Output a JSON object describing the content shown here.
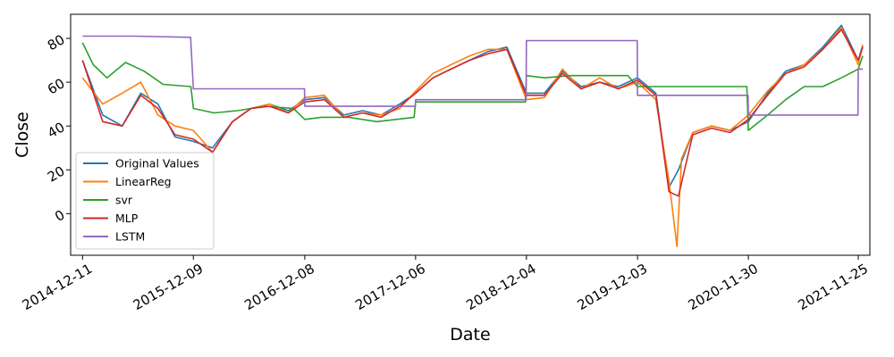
{
  "chart_data": {
    "type": "line",
    "title": "",
    "xlabel": "Date",
    "ylabel": "Close",
    "x_ticks": [
      "2014-12-11",
      "2015-12-09",
      "2016-12-08",
      "2017-12-06",
      "2018-12-04",
      "2019-12-03",
      "2020-11-30",
      "2021-11-25"
    ],
    "y_ticks": [
      0,
      20,
      40,
      60,
      80
    ],
    "xlim": [
      "2014-11-02",
      "2022-01-02"
    ],
    "ylim": [
      -19,
      91
    ],
    "grid": false,
    "legend_position": "lower-left",
    "series": [
      {
        "name": "Original Values",
        "color": "#1f77b4",
        "x": [
          "2014-12-11",
          "2015-02-15",
          "2015-04-20",
          "2015-06-20",
          "2015-08-15",
          "2015-10-10",
          "2015-12-09",
          "2016-02-10",
          "2016-04-15",
          "2016-06-15",
          "2016-08-15",
          "2016-10-15",
          "2016-12-08",
          "2017-02-10",
          "2017-04-15",
          "2017-06-15",
          "2017-08-15",
          "2017-10-15",
          "2017-12-06",
          "2018-02-01",
          "2018-04-01",
          "2018-06-01",
          "2018-08-01",
          "2018-10-01",
          "2018-12-04",
          "2019-02-01",
          "2019-04-01",
          "2019-06-01",
          "2019-08-01",
          "2019-10-01",
          "2019-12-03",
          "2020-02-01",
          "2020-03-15",
          "2020-04-15",
          "2020-06-01",
          "2020-08-01",
          "2020-10-01",
          "2020-11-30",
          "2021-02-01",
          "2021-04-01",
          "2021-06-01",
          "2021-08-01",
          "2021-10-01",
          "2021-11-25",
          "2021-12-10"
        ],
        "y": [
          70,
          45,
          40,
          55,
          50,
          35,
          33,
          30,
          42,
          48,
          50,
          47,
          52,
          53,
          45,
          47,
          45,
          50,
          55,
          62,
          66,
          70,
          74,
          76,
          55,
          55,
          65,
          58,
          60,
          58,
          62,
          55,
          12,
          20,
          37,
          40,
          38,
          42,
          55,
          65,
          68,
          76,
          86,
          70,
          77
        ]
      },
      {
        "name": "LinearReg",
        "color": "#ff7f0e",
        "x": [
          "2014-12-11",
          "2015-02-15",
          "2015-04-20",
          "2015-06-20",
          "2015-08-15",
          "2015-10-10",
          "2015-12-09",
          "2016-02-10",
          "2016-04-15",
          "2016-06-15",
          "2016-08-15",
          "2016-10-15",
          "2016-12-08",
          "2017-02-10",
          "2017-04-15",
          "2017-06-15",
          "2017-08-15",
          "2017-10-15",
          "2017-12-06",
          "2018-02-01",
          "2018-04-01",
          "2018-06-01",
          "2018-08-01",
          "2018-10-01",
          "2018-12-04",
          "2019-02-01",
          "2019-04-01",
          "2019-06-01",
          "2019-08-01",
          "2019-10-01",
          "2019-12-03",
          "2020-02-01",
          "2020-03-15",
          "2020-04-10",
          "2020-04-25",
          "2020-06-01",
          "2020-08-01",
          "2020-10-01",
          "2020-11-30",
          "2021-02-01",
          "2021-04-01",
          "2021-06-01",
          "2021-08-01",
          "2021-10-01",
          "2021-11-25",
          "2021-12-10"
        ],
        "y": [
          62,
          50,
          55,
          60,
          45,
          40,
          38,
          28,
          42,
          48,
          50,
          46,
          53,
          54,
          44,
          46,
          45,
          48,
          56,
          64,
          68,
          72,
          75,
          75,
          52,
          53,
          66,
          57,
          62,
          57,
          60,
          52,
          15,
          -15,
          25,
          37,
          40,
          38,
          45,
          56,
          64,
          68,
          75,
          85,
          68,
          77
        ]
      },
      {
        "name": "svr",
        "color": "#2ca02c",
        "x": [
          "2014-12-11",
          "2015-01-15",
          "2015-03-01",
          "2015-05-01",
          "2015-07-01",
          "2015-09-01",
          "2015-12-01",
          "2015-12-09",
          "2016-02-15",
          "2016-05-01",
          "2016-08-01",
          "2016-11-01",
          "2016-12-08",
          "2017-02-01",
          "2017-05-01",
          "2017-08-01",
          "2017-12-01",
          "2017-12-06",
          "2018-03-01",
          "2018-06-01",
          "2018-09-01",
          "2018-12-01",
          "2018-12-04",
          "2019-02-01",
          "2019-05-01",
          "2019-08-01",
          "2019-11-01",
          "2019-12-03",
          "2020-03-01",
          "2020-06-01",
          "2020-09-01",
          "2020-11-25",
          "2020-11-30",
          "2021-02-01",
          "2021-04-01",
          "2021-06-01",
          "2021-08-01",
          "2021-10-01",
          "2021-11-25",
          "2021-12-10"
        ],
        "y": [
          78,
          68,
          62,
          69,
          65,
          59,
          58,
          48,
          46,
          47,
          49,
          48,
          43,
          44,
          44,
          42,
          44,
          51,
          51,
          51,
          51,
          51,
          63,
          62,
          63,
          63,
          63,
          58,
          58,
          58,
          58,
          58,
          38,
          45,
          52,
          58,
          58,
          62,
          66,
          72
        ]
      },
      {
        "name": "MLP",
        "color": "#d62728",
        "x": [
          "2014-12-11",
          "2015-02-15",
          "2015-04-20",
          "2015-06-20",
          "2015-08-15",
          "2015-10-10",
          "2015-12-09",
          "2016-02-10",
          "2016-04-15",
          "2016-06-15",
          "2016-08-15",
          "2016-10-15",
          "2016-12-08",
          "2017-02-10",
          "2017-04-15",
          "2017-06-15",
          "2017-08-15",
          "2017-10-15",
          "2017-12-06",
          "2018-02-01",
          "2018-04-01",
          "2018-06-01",
          "2018-08-01",
          "2018-10-01",
          "2018-12-04",
          "2019-02-01",
          "2019-04-01",
          "2019-06-01",
          "2019-08-01",
          "2019-10-01",
          "2019-12-03",
          "2020-02-01",
          "2020-03-15",
          "2020-04-15",
          "2020-06-01",
          "2020-08-01",
          "2020-10-01",
          "2020-11-30",
          "2021-02-01",
          "2021-04-01",
          "2021-06-01",
          "2021-08-01",
          "2021-10-01",
          "2021-11-25",
          "2021-12-10"
        ],
        "y": [
          70,
          42,
          40,
          54,
          48,
          36,
          34,
          28,
          42,
          48,
          49,
          46,
          51,
          52,
          44,
          46,
          44,
          49,
          55,
          62,
          66,
          70,
          73,
          75,
          54,
          54,
          64,
          57,
          60,
          57,
          61,
          54,
          10,
          8,
          36,
          39,
          37,
          43,
          54,
          64,
          67,
          75,
          84,
          70,
          76
        ]
      },
      {
        "name": "LSTM",
        "color": "#9467bd",
        "x": [
          "2014-12-11",
          "2015-06-01",
          "2015-11-30",
          "2015-12-09",
          "2016-12-07",
          "2016-12-08",
          "2017-12-05",
          "2017-12-06",
          "2018-12-03",
          "2018-12-04",
          "2019-12-02",
          "2019-12-03",
          "2020-11-29",
          "2020-11-30",
          "2021-11-24",
          "2021-11-25",
          "2021-12-10"
        ],
        "y": [
          81,
          81,
          80.5,
          57,
          57,
          49,
          49,
          52,
          52,
          79,
          79,
          54,
          54,
          45,
          45,
          66,
          66
        ]
      }
    ]
  }
}
